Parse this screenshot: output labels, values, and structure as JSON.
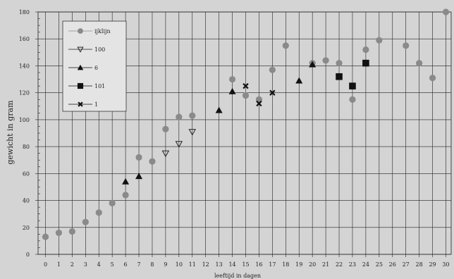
{
  "chart_data": {
    "type": "scatter",
    "xlabel": "leeftijd in dagen",
    "ylabel": "gewicht in gram",
    "xlim": [
      -0.5,
      30.5
    ],
    "ylim": [
      0,
      180
    ],
    "xticks": [
      0,
      1,
      2,
      3,
      4,
      5,
      6,
      7,
      8,
      9,
      10,
      11,
      12,
      13,
      14,
      15,
      16,
      17,
      18,
      19,
      20,
      21,
      22,
      23,
      24,
      25,
      26,
      27,
      28,
      29,
      30
    ],
    "yticks": [
      0,
      20,
      40,
      60,
      80,
      100,
      120,
      140,
      160,
      180
    ],
    "grid": true,
    "legend_position": "top-left",
    "series": [
      {
        "name": "ijklijn",
        "marker": "circle",
        "color": "#8a8a8a",
        "x": [
          0,
          1,
          2,
          3,
          4,
          5,
          6,
          7,
          8,
          9,
          10,
          11,
          14,
          15,
          16,
          17,
          18,
          20,
          21,
          22,
          23,
          24,
          25,
          27,
          28,
          29,
          30
        ],
        "y": [
          13,
          16,
          17,
          24,
          31,
          38,
          44,
          72,
          69,
          93,
          102,
          103,
          130,
          118,
          115,
          137,
          155,
          142,
          144,
          142,
          115,
          152,
          159,
          155,
          142,
          131,
          180
        ]
      },
      {
        "name": "100",
        "marker": "triangle-down-open",
        "color": "#222222",
        "x": [
          9,
          10,
          11
        ],
        "y": [
          75,
          82,
          91
        ]
      },
      {
        "name": "6",
        "marker": "triangle",
        "color": "#111111",
        "x": [
          6,
          7,
          13,
          14,
          19,
          20
        ],
        "y": [
          54,
          58,
          107,
          121,
          129,
          141
        ]
      },
      {
        "name": "101",
        "marker": "square",
        "color": "#111111",
        "x": [
          22,
          23,
          24
        ],
        "y": [
          132,
          125,
          142
        ]
      },
      {
        "name": "1",
        "marker": "x",
        "color": "#111111",
        "x": [
          15,
          16,
          17
        ],
        "y": [
          125,
          112,
          120
        ]
      }
    ]
  },
  "colors": {
    "background": "#d4d4d4",
    "grid": "#222222",
    "legend_background": "#e4e4e4"
  }
}
